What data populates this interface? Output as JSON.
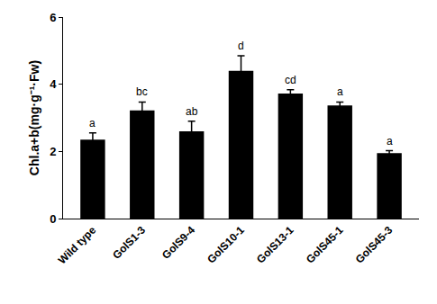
{
  "chart_data": {
    "type": "bar",
    "y_label": "Chl.a+b(mg·g⁻¹·Fw)",
    "categories": [
      "Wild type",
      "GolS1-3",
      "GolS9-4",
      "GolS10-1",
      "GolS13-1",
      "GolS45-1",
      "GolS45-3"
    ],
    "values": [
      2.35,
      3.22,
      2.6,
      4.4,
      3.72,
      3.37,
      1.95
    ],
    "errors": [
      0.2,
      0.25,
      0.3,
      0.45,
      0.12,
      0.1,
      0.07
    ],
    "annotations": [
      "a",
      "bc",
      "ab",
      "d",
      "cd",
      "a",
      "a"
    ],
    "color": "#000000",
    "ylim": [
      0,
      6
    ],
    "yticks": [
      0,
      2,
      4,
      6
    ],
    "grid": false
  }
}
